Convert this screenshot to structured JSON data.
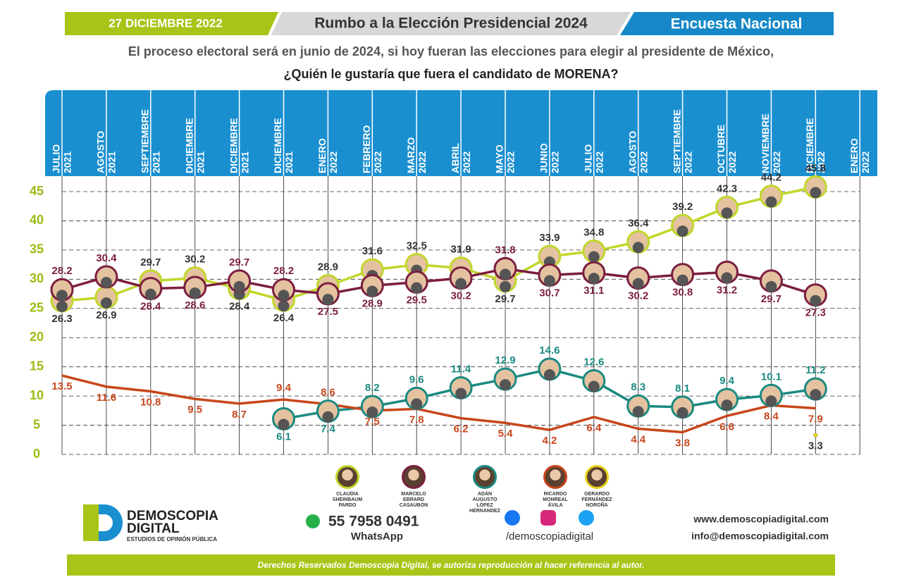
{
  "header": {
    "date": "27 DICIEMBRE 2022",
    "title": "Rumbo a la Elección Presidencial 2024",
    "right": "Encuesta Nacional"
  },
  "subtitle": [
    "El proceso electoral será en junio de 2024, si hoy fueran las elecciones para elegir al presidente de México,",
    "¿Quién le gustaría que fuera el candidato de MORENA?"
  ],
  "chart_data": {
    "type": "line",
    "categories": [
      [
        "JULIO",
        "2021"
      ],
      [
        "AGOSTO",
        "2021"
      ],
      [
        "SEPTIEMBRE",
        "2021"
      ],
      [
        "DICIEMBRE",
        "2021"
      ],
      [
        "DICIEMBRE",
        "2021"
      ],
      [
        "DICIEMBRE",
        "2021"
      ],
      [
        "ENERO",
        "2022"
      ],
      [
        "FEBRERO",
        "2022"
      ],
      [
        "MARZO",
        "2022"
      ],
      [
        "ABRIL",
        "2022"
      ],
      [
        "MAYO",
        "2022"
      ],
      [
        "JUNIO",
        "2022"
      ],
      [
        "JULIO",
        "2022"
      ],
      [
        "AGOSTO",
        "2022"
      ],
      [
        "SEPTIEMBRE",
        "2022"
      ],
      [
        "OCTUBRE",
        "2022"
      ],
      [
        "NOVIEMBRE",
        "2022"
      ],
      [
        "DICIEMBRE",
        "2022"
      ],
      [
        "ENERO",
        "2022"
      ]
    ],
    "series": [
      {
        "name": "CLAUDIA SHEINBAUM PARDO",
        "color": "#c2d62b",
        "label_color": "#333333",
        "marker": "photo",
        "values": [
          26.3,
          26.9,
          29.7,
          30.2,
          28.4,
          26.4,
          28.9,
          31.6,
          32.5,
          31.9,
          29.7,
          33.9,
          34.8,
          36.4,
          39.2,
          42.3,
          44.2,
          45.8,
          null
        ]
      },
      {
        "name": "MARCELO EBRARD CASAUBÓN",
        "color": "#7b1e3f",
        "label_color": "#7b1e3f",
        "marker": "photo",
        "values": [
          28.2,
          30.4,
          28.4,
          28.6,
          29.7,
          28.2,
          27.5,
          28.9,
          29.5,
          30.2,
          31.8,
          30.7,
          31.1,
          30.2,
          30.8,
          31.2,
          29.7,
          27.3,
          null
        ]
      },
      {
        "name": "ADÁN AUGUSTO LÓPEZ HERNÁNDEZ",
        "color": "#1b8a80",
        "label_color": "#1b8a80",
        "marker": "photo",
        "values": [
          null,
          null,
          null,
          null,
          null,
          6.1,
          7.4,
          8.2,
          9.6,
          11.4,
          12.9,
          14.6,
          12.6,
          8.3,
          8.1,
          9.4,
          10.1,
          11.2,
          null
        ]
      },
      {
        "name": "RICARDO MONREAL ÁVILA",
        "color": "#c8461b",
        "label_color": "#c8461b",
        "marker": "none",
        "values": [
          13.5,
          11.6,
          10.8,
          9.5,
          8.7,
          9.4,
          8.6,
          7.5,
          7.8,
          6.2,
          5.4,
          4.2,
          6.4,
          4.4,
          3.8,
          6.6,
          8.4,
          7.9,
          null
        ]
      },
      {
        "name": "GERARDO FERNÁNDEZ NOROÑA",
        "color": "#e6d41c",
        "label_color": "#333333",
        "marker": "dot",
        "values": [
          null,
          null,
          null,
          null,
          null,
          null,
          null,
          null,
          null,
          null,
          null,
          null,
          null,
          null,
          null,
          null,
          null,
          3.3,
          null
        ]
      }
    ],
    "ylim": [
      0,
      45
    ],
    "yticks": [
      0,
      5,
      10,
      15,
      20,
      25,
      30,
      35,
      40,
      45
    ],
    "grid": true
  },
  "footer": {
    "brand": "DEMOSCOPIA",
    "brand2": "DIGITAL",
    "tagline": "ESTUDIOS DE OPINIÓN PÚBLICA",
    "phone": "55 7958 0491",
    "whatsapp": "WhatsApp",
    "social": "/demoscopiadigital",
    "web": "www.demoscopiadigital.com",
    "email": "info@demoscopiadigital.com",
    "rights": "Derechos Reservados Demoscopia Digital, se autoriza reproducción al hacer referencia al autor."
  }
}
